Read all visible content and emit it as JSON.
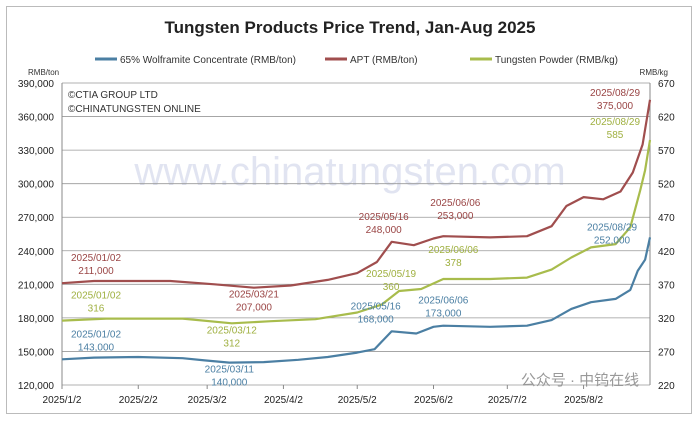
{
  "chart_data": {
    "type": "line",
    "title": "Tungsten Products Price Trend, Jan-Aug 2025",
    "left_unit": "RMB/ton",
    "right_unit": "RMB/kg",
    "left_ylim": [
      120000,
      390000
    ],
    "right_ylim": [
      220,
      670
    ],
    "left_ticks": [
      "390,000",
      "360,000",
      "330,000",
      "300,000",
      "270,000",
      "240,000",
      "210,000",
      "180,000",
      "150,000",
      "120,000"
    ],
    "right_ticks": [
      "670",
      "620",
      "570",
      "520",
      "470",
      "420",
      "370",
      "320",
      "270",
      "220"
    ],
    "x_ticks": [
      "2025/1/2",
      "2025/2/2",
      "2025/3/2",
      "2025/4/2",
      "2025/5/2",
      "2025/6/2",
      "2025/7/2",
      "2025/8/2"
    ],
    "grid": true,
    "legend_position": "top",
    "copyright": [
      "©CTIA GROUP LTD",
      "©CHINATUNGSTEN ONLINE"
    ],
    "watermark": "www.chinatungsten.com",
    "footer_mark": "公众号 · 中钨在线",
    "series": [
      {
        "name": "65% Wolframite Concentrate (RMB/ton)",
        "axis": "left",
        "color": "#4b7fa3",
        "points": [
          [
            "2025-01-02",
            143000
          ],
          [
            "2025-01-15",
            144500
          ],
          [
            "2025-02-02",
            145000
          ],
          [
            "2025-02-20",
            144000
          ],
          [
            "2025-03-01",
            142000
          ],
          [
            "2025-03-11",
            140000
          ],
          [
            "2025-03-25",
            140500
          ],
          [
            "2025-04-08",
            142500
          ],
          [
            "2025-04-20",
            145000
          ],
          [
            "2025-05-02",
            149000
          ],
          [
            "2025-05-09",
            152000
          ],
          [
            "2025-05-16",
            168000
          ],
          [
            "2025-05-26",
            166000
          ],
          [
            "2025-06-02",
            172000
          ],
          [
            "2025-06-06",
            173000
          ],
          [
            "2025-06-25",
            172000
          ],
          [
            "2025-07-10",
            173000
          ],
          [
            "2025-07-20",
            178000
          ],
          [
            "2025-07-28",
            188000
          ],
          [
            "2025-08-05",
            194000
          ],
          [
            "2025-08-15",
            197000
          ],
          [
            "2025-08-21",
            205000
          ],
          [
            "2025-08-24",
            222000
          ],
          [
            "2025-08-27",
            232000
          ],
          [
            "2025-08-29",
            252000
          ]
        ]
      },
      {
        "name": "APT (RMB/ton)",
        "axis": "left",
        "color": "#a04e4e",
        "points": [
          [
            "2025-01-02",
            211000
          ],
          [
            "2025-01-15",
            213000
          ],
          [
            "2025-02-15",
            213000
          ],
          [
            "2025-03-05",
            210000
          ],
          [
            "2025-03-21",
            207000
          ],
          [
            "2025-04-05",
            209000
          ],
          [
            "2025-04-20",
            214000
          ],
          [
            "2025-05-02",
            220000
          ],
          [
            "2025-05-10",
            230000
          ],
          [
            "2025-05-16",
            248000
          ],
          [
            "2025-05-25",
            245000
          ],
          [
            "2025-06-02",
            251000
          ],
          [
            "2025-06-06",
            253000
          ],
          [
            "2025-06-25",
            252000
          ],
          [
            "2025-07-10",
            253000
          ],
          [
            "2025-07-20",
            262000
          ],
          [
            "2025-07-26",
            280000
          ],
          [
            "2025-08-02",
            288000
          ],
          [
            "2025-08-10",
            286000
          ],
          [
            "2025-08-17",
            293000
          ],
          [
            "2025-08-22",
            310000
          ],
          [
            "2025-08-26",
            335000
          ],
          [
            "2025-08-29",
            375000
          ]
        ]
      },
      {
        "name": "Tungsten Powder (RMB/kg)",
        "axis": "right",
        "color": "#a8bc4c",
        "points": [
          [
            "2025-01-02",
            316
          ],
          [
            "2025-01-20",
            319
          ],
          [
            "2025-02-20",
            319
          ],
          [
            "2025-03-12",
            312
          ],
          [
            "2025-03-28",
            315
          ],
          [
            "2025-04-15",
            318
          ],
          [
            "2025-05-02",
            328
          ],
          [
            "2025-05-12",
            340
          ],
          [
            "2025-05-19",
            360
          ],
          [
            "2025-05-28",
            363
          ],
          [
            "2025-06-06",
            378
          ],
          [
            "2025-06-25",
            378
          ],
          [
            "2025-07-10",
            380
          ],
          [
            "2025-07-20",
            392
          ],
          [
            "2025-07-28",
            410
          ],
          [
            "2025-08-05",
            425
          ],
          [
            "2025-08-15",
            430
          ],
          [
            "2025-08-21",
            455
          ],
          [
            "2025-08-25",
            510
          ],
          [
            "2025-08-27",
            540
          ],
          [
            "2025-08-29",
            585
          ]
        ]
      }
    ],
    "annotations": [
      {
        "series": 1,
        "date": "2025/01/02",
        "value": "211,000"
      },
      {
        "series": 0,
        "date": "2025/01/02",
        "value": "143,000"
      },
      {
        "series": 2,
        "date": "2025/01/02",
        "value": "316"
      },
      {
        "series": 1,
        "date": "2025/03/21",
        "value": "207,000"
      },
      {
        "series": 2,
        "date": "2025/03/12",
        "value": "312"
      },
      {
        "series": 0,
        "date": "2025/03/11",
        "value": "140,000"
      },
      {
        "series": 1,
        "date": "2025/05/16",
        "value": "248,000"
      },
      {
        "series": 2,
        "date": "2025/05/19",
        "value": "360"
      },
      {
        "series": 0,
        "date": "2025/05/16",
        "value": "168,000"
      },
      {
        "series": 1,
        "date": "2025/06/06",
        "value": "253,000"
      },
      {
        "series": 2,
        "date": "2025/06/06",
        "value": "378"
      },
      {
        "series": 0,
        "date": "2025/06/06",
        "value": "173,000"
      },
      {
        "series": 1,
        "date": "2025/08/29",
        "value": "375,000"
      },
      {
        "series": 2,
        "date": "2025/08/29",
        "value": "585"
      },
      {
        "series": 0,
        "date": "2025/08/29",
        "value": "252,000"
      }
    ]
  }
}
